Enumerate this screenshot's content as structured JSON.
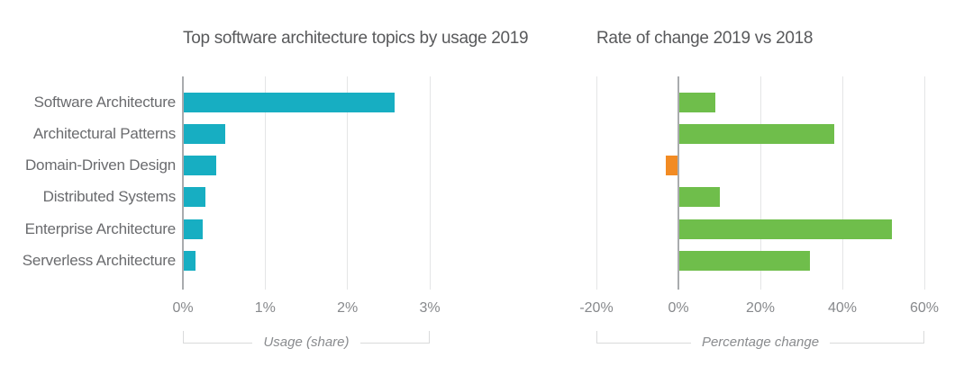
{
  "figure": {
    "background": "#ffffff",
    "colors": {
      "usage_bar": "#17AEC2",
      "positive_bar": "#6FBE4B",
      "negative_bar": "#F28B23",
      "title_text": "#58595B",
      "category_text": "#6A6B6E",
      "tick_text": "#87898C",
      "gridline": "#E4E5E6",
      "zero_line": "#A9ABAE",
      "bracket_line": "#D9DADB"
    }
  },
  "chart_data": [
    {
      "type": "bar",
      "orientation": "horizontal",
      "title": "Top software architecture topics by usage 2019",
      "categories": [
        "Software Architecture",
        "Architectural Patterns",
        "Domain-Driven Design",
        "Distributed Systems",
        "Enterprise Architecture",
        "Serverless Architecture"
      ],
      "values": [
        2.57,
        0.52,
        0.41,
        0.27,
        0.24,
        0.15
      ],
      "value_unit": "percent",
      "xlabel": "Usage (share)",
      "xlim": [
        0,
        3
      ],
      "xticks": [
        0,
        1,
        2,
        3
      ],
      "xtick_labels": [
        "0%",
        "1%",
        "2%",
        "3%"
      ],
      "bar_color": "#17AEC2",
      "negative_bar_color": "#17AEC2",
      "grid": "vertical",
      "legend": "none"
    },
    {
      "type": "bar",
      "orientation": "horizontal",
      "title": "Rate of change 2019 vs 2018",
      "categories": [
        "Software Architecture",
        "Architectural Patterns",
        "Domain-Driven Design",
        "Distributed Systems",
        "Enterprise Architecture",
        "Serverless Architecture"
      ],
      "values": [
        9,
        38,
        -3,
        10,
        52,
        32
      ],
      "value_unit": "percent",
      "xlabel": "Percentage change",
      "xlim": [
        -20,
        60
      ],
      "xticks": [
        -20,
        0,
        20,
        40,
        60
      ],
      "xtick_labels": [
        "-20%",
        "0%",
        "20%",
        "40%",
        "60%"
      ],
      "bar_color": "#6FBE4B",
      "negative_bar_color": "#F28B23",
      "grid": "vertical",
      "legend": "none"
    }
  ]
}
